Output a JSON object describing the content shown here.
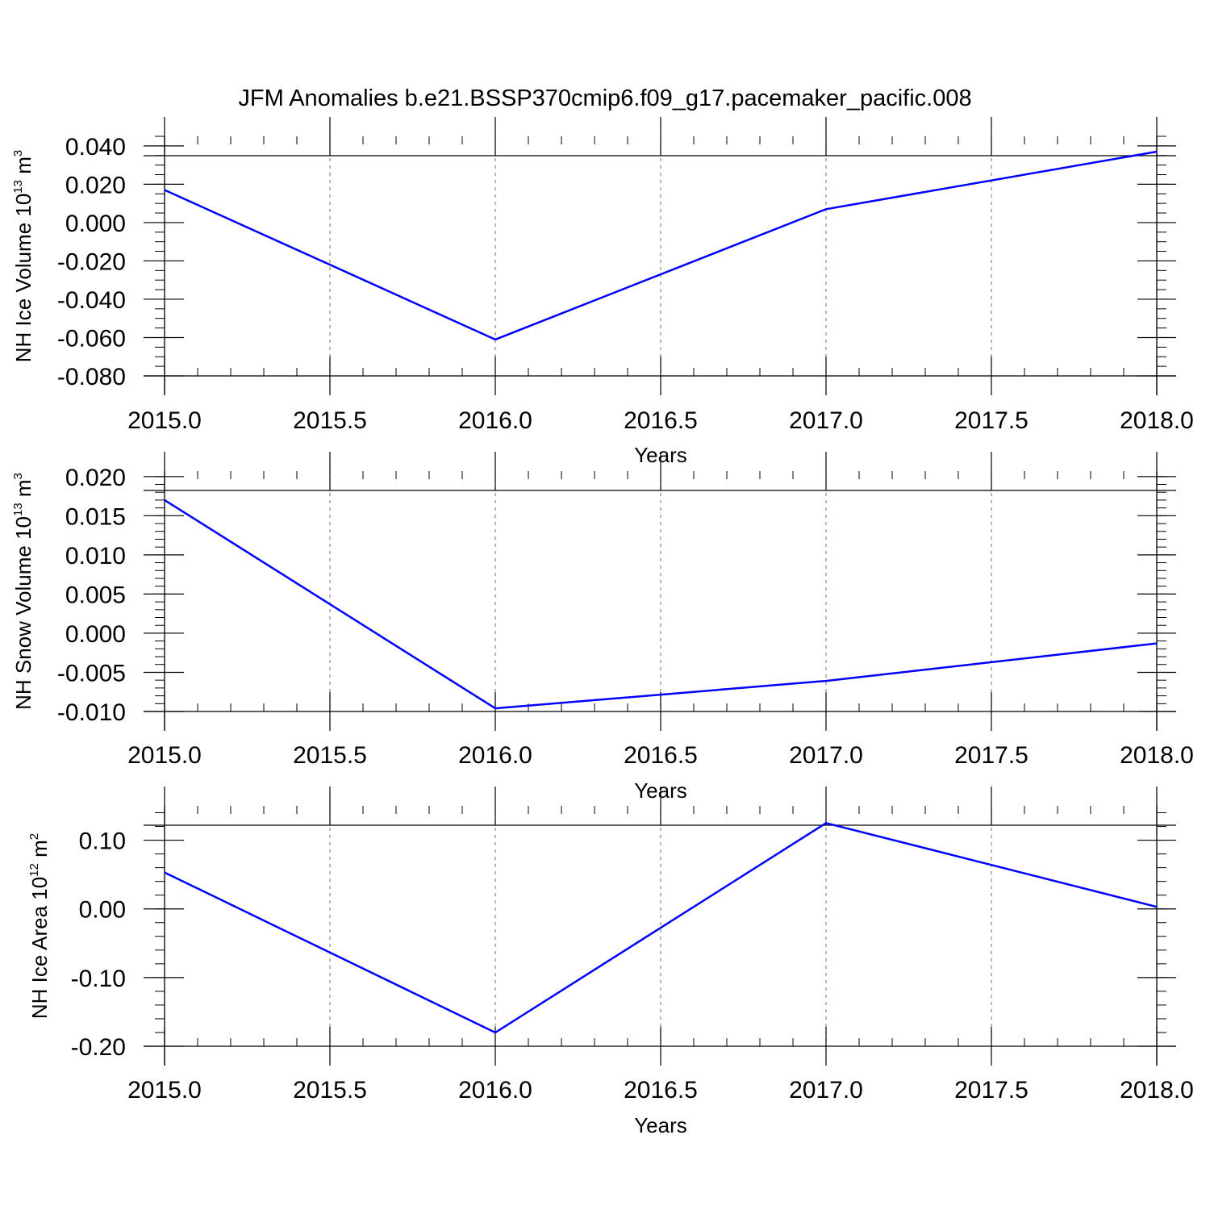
{
  "title": "JFM Anomalies b.e21.BSSP370cmip6.f09_g17.pacemaker_pacific.008",
  "chart_data": [
    {
      "type": "line",
      "xlabel": "Years",
      "ylabel": {
        "text": "NH Ice Volume 10",
        "sup": "13",
        "unit": " m",
        "unit_sup": "3"
      },
      "xlim": [
        2015.0,
        2018.0
      ],
      "ylim": [
        -0.08,
        0.045
      ],
      "x_ticks": [
        "2015.0",
        "2015.5",
        "2016.0",
        "2016.5",
        "2017.0",
        "2017.5",
        "2018.0"
      ],
      "y_ticks": [
        {
          "value": -0.08,
          "label": "-0.080"
        },
        {
          "value": -0.06,
          "label": "-0.060"
        },
        {
          "value": -0.04,
          "label": "-0.040"
        },
        {
          "value": -0.02,
          "label": "-0.020"
        },
        {
          "value": 0.0,
          "label": "0.000"
        },
        {
          "value": 0.02,
          "label": "0.020"
        },
        {
          "value": 0.04,
          "label": "0.040"
        }
      ],
      "y_minor_step": 0.005,
      "grid": "x-dashed",
      "series": [
        {
          "x": [
            2015,
            2016,
            2017,
            2018
          ],
          "y": [
            0.017,
            -0.061,
            0.007,
            0.037
          ],
          "color": "#0000ff"
        }
      ]
    },
    {
      "type": "line",
      "xlabel": "Years",
      "ylabel": {
        "text": "NH Snow Volume 10",
        "sup": "13",
        "unit": " m",
        "unit_sup": "3"
      },
      "xlim": [
        2015.0,
        2018.0
      ],
      "ylim": [
        -0.01,
        0.0207
      ],
      "x_ticks": [
        "2015.0",
        "2015.5",
        "2016.0",
        "2016.5",
        "2017.0",
        "2017.5",
        "2018.0"
      ],
      "y_ticks": [
        {
          "value": -0.01,
          "label": "-0.010"
        },
        {
          "value": -0.005,
          "label": "-0.005"
        },
        {
          "value": 0.0,
          "label": "0.000"
        },
        {
          "value": 0.005,
          "label": "0.005"
        },
        {
          "value": 0.01,
          "label": "0.010"
        },
        {
          "value": 0.015,
          "label": "0.015"
        },
        {
          "value": 0.02,
          "label": "0.020"
        }
      ],
      "y_minor_step": 0.001,
      "grid": "x-dashed",
      "series": [
        {
          "x": [
            2015,
            2016,
            2017,
            2018
          ],
          "y": [
            0.017,
            -0.0096,
            -0.0061,
            -0.0013
          ],
          "color": "#0000ff"
        }
      ]
    },
    {
      "type": "line",
      "xlabel": "Years",
      "ylabel": {
        "text": "NH Ice Area 10",
        "sup": "12",
        "unit": " m",
        "unit_sup": "2"
      },
      "xlim": [
        2015.0,
        2018.0
      ],
      "ylim": [
        -0.2,
        0.15
      ],
      "x_ticks": [
        "2015.0",
        "2015.5",
        "2016.0",
        "2016.5",
        "2017.0",
        "2017.5",
        "2018.0"
      ],
      "y_ticks": [
        {
          "value": -0.2,
          "label": "-0.20"
        },
        {
          "value": -0.1,
          "label": "-0.10"
        },
        {
          "value": 0.0,
          "label": "0.00"
        },
        {
          "value": 0.1,
          "label": "0.10"
        }
      ],
      "y_minor_step": 0.02,
      "grid": "x-dashed",
      "series": [
        {
          "x": [
            2015,
            2016,
            2017,
            2018
          ],
          "y": [
            0.053,
            -0.18,
            0.125,
            0.003
          ],
          "color": "#0000ff"
        }
      ]
    }
  ]
}
